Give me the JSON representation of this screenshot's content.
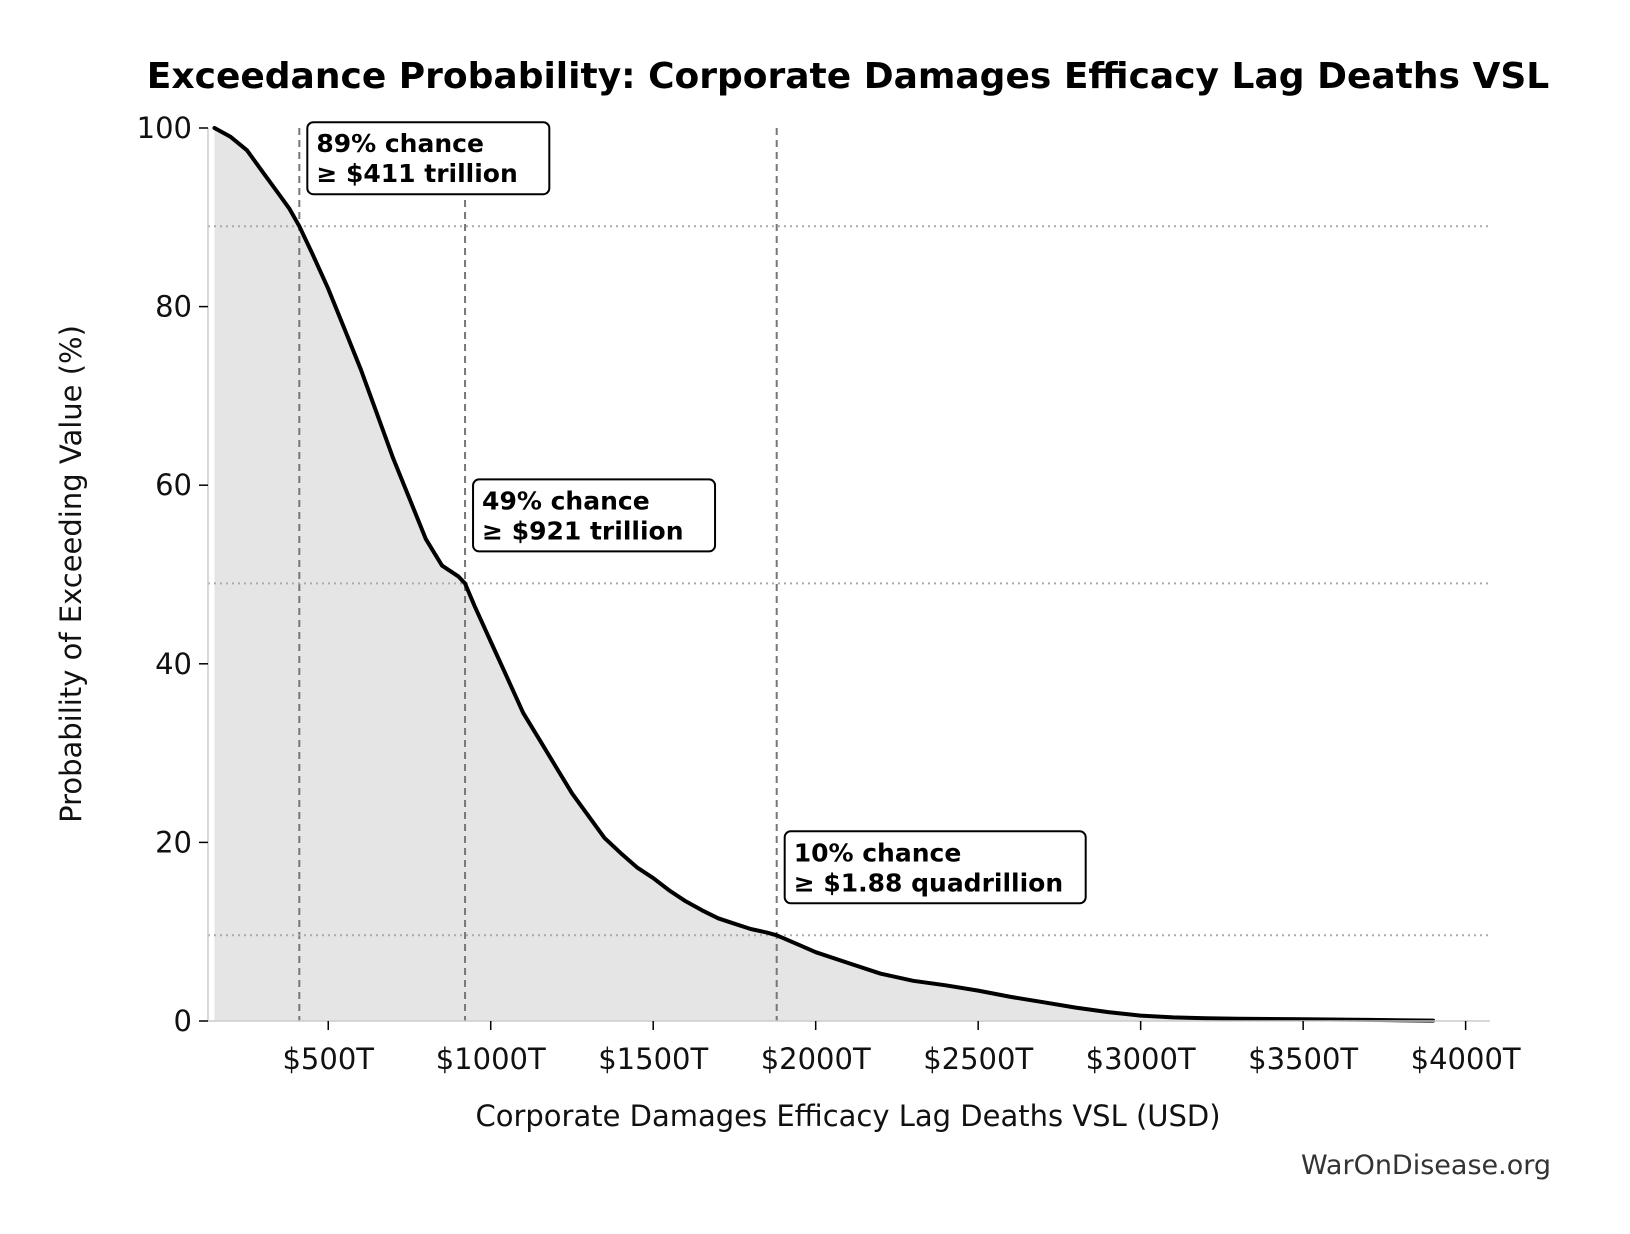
{
  "chart_data": {
    "type": "area",
    "title": "Exceedance Probability: Corporate Damages Efficacy Lag Deaths VSL",
    "xlabel": "Corporate Damages Efficacy Lag Deaths VSL (USD)",
    "ylabel": "Probability of Exceeding Value (%)",
    "xlim": [
      130,
      4075
    ],
    "ylim": [
      0,
      100
    ],
    "x_ticks": [
      500,
      1000,
      1500,
      2000,
      2500,
      3000,
      3500,
      4000
    ],
    "x_tick_labels": [
      "$500T",
      "$1000T",
      "$1500T",
      "$2000T",
      "$2500T",
      "$3000T",
      "$3500T",
      "$4000T"
    ],
    "y_ticks": [
      0,
      20,
      40,
      60,
      80,
      100
    ],
    "y_tick_labels": [
      "0",
      "20",
      "40",
      "60",
      "80",
      "100"
    ],
    "grid": false,
    "series": [
      {
        "x": [
          150,
          200,
          250,
          300,
          350,
          380,
          411,
          450,
          500,
          550,
          600,
          650,
          700,
          750,
          800,
          850,
          900,
          921,
          950,
          1000,
          1050,
          1100,
          1150,
          1200,
          1250,
          1300,
          1350,
          1400,
          1450,
          1500,
          1550,
          1600,
          1650,
          1700,
          1750,
          1800,
          1850,
          1880,
          1950,
          2000,
          2100,
          2200,
          2300,
          2400,
          2500,
          2600,
          2700,
          2800,
          2900,
          3000,
          3100,
          3200,
          3300,
          3500,
          3700,
          3900
        ],
        "y": [
          100,
          99,
          97.5,
          95,
          92.5,
          91,
          89,
          86,
          82,
          77.5,
          73,
          68,
          63,
          58.5,
          54,
          51,
          49.8,
          49,
          46.5,
          42.5,
          38.5,
          34.5,
          31.5,
          28.5,
          25.5,
          23,
          20.5,
          18.8,
          17.2,
          16,
          14.6,
          13.4,
          12.4,
          11.5,
          10.9,
          10.3,
          9.9,
          9.6,
          8.5,
          7.7,
          6.5,
          5.3,
          4.5,
          4.0,
          3.4,
          2.7,
          2.1,
          1.5,
          1.0,
          0.6,
          0.4,
          0.3,
          0.25,
          0.2,
          0.12,
          0.05
        ]
      }
    ],
    "annotations": [
      {
        "line1": "89% chance",
        "line2": "≥ $411 trillion",
        "x": 411,
        "y": 89
      },
      {
        "line1": "49% chance",
        "line2": "≥ $921 trillion",
        "x": 921,
        "y": 49
      },
      {
        "line1": "10% chance",
        "line2": "≥ $1.88 quadrillion",
        "x": 1880,
        "y": 9.6
      }
    ]
  },
  "watermark": "WarOnDisease.org"
}
